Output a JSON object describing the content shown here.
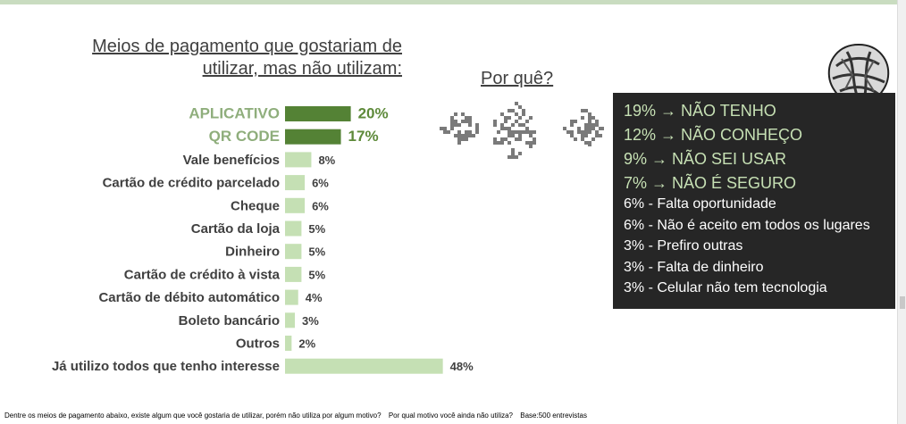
{
  "title": "Meios de pagamento que gostariam de utilizar, mas não utilizam:",
  "reasons_heading": "Por quê?",
  "colors": {
    "highlight_bar": "#548235",
    "normal_bar": "#c5e0b4",
    "box_bg": "#262626",
    "main_reason": "#c6e0b4"
  },
  "reasons_main": [
    "19% → NÃO TENHO",
    "12% → NÃO CONHEÇO",
    "9% → NÃO SEI USAR",
    "7% → NÃO É SEGURO"
  ],
  "reasons_minor": [
    "6% - Falta oportunidade",
    "6% - Não é aceito em todos os lugares",
    "3% - Prefiro outras",
    "3% - Falta de dinheiro",
    "3% - Celular não tem tecnologia"
  ],
  "footer": {
    "question1": "Dentre os meios de pagamento abaixo, existe algum que você gostaria de utilizar, porém não utiliza por algum motivo?",
    "question2": "Por qual motivo você ainda não utiliza?",
    "base": "Base:500 entrevistas"
  },
  "chart_data": {
    "type": "bar",
    "orientation": "horizontal",
    "categories": [
      "APLICATIVO",
      "QR CODE",
      "Vale benefícios",
      "Cartão de crédito parcelado",
      "Cheque",
      "Cartão da loja",
      "Dinheiro",
      "Cartão de crédito à vista",
      "Cartão de débito automático",
      "Boleto bancário",
      "Outros",
      "Já utilizo todos que tenho interesse"
    ],
    "values": [
      20,
      17,
      8,
      6,
      6,
      5,
      5,
      5,
      4,
      3,
      2,
      48
    ],
    "value_labels": [
      "20%",
      "17%",
      "8%",
      "6%",
      "6%",
      "5%",
      "5%",
      "5%",
      "4%",
      "3%",
      "2%",
      "48%"
    ],
    "highlighted": [
      "APLICATIVO",
      "QR CODE"
    ],
    "unit": "%"
  }
}
